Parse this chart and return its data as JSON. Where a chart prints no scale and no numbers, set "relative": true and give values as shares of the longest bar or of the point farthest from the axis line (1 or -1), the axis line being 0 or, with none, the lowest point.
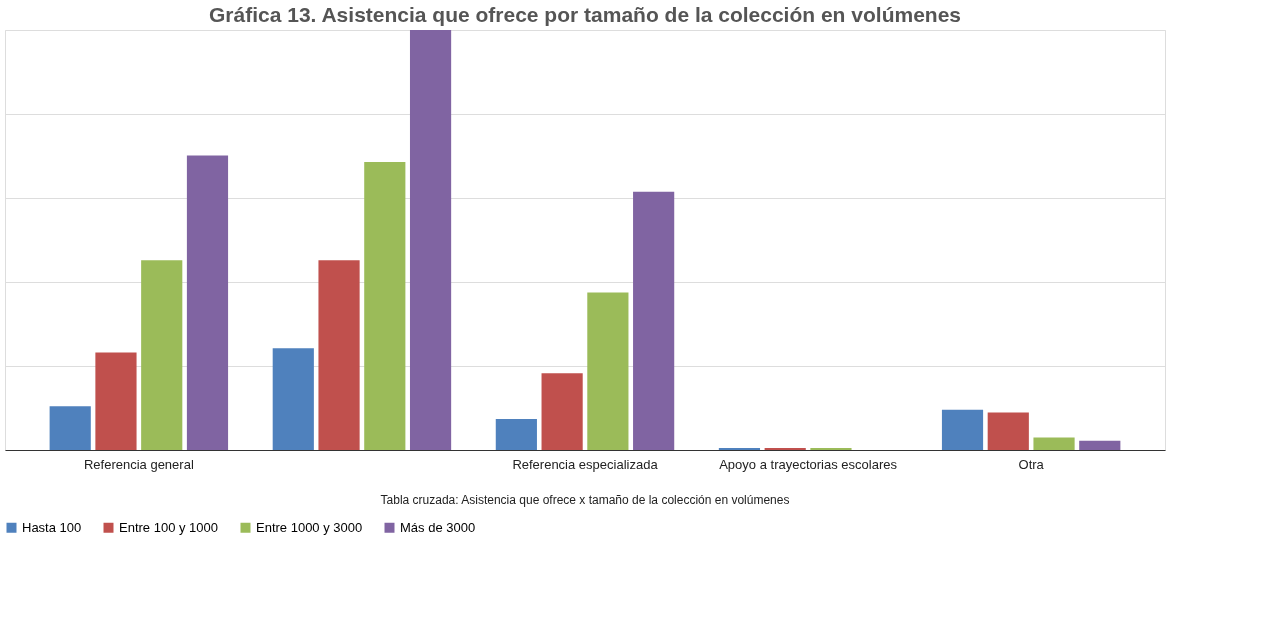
{
  "chart_data": {
    "type": "bar",
    "title": "Gráfica 13. Asistencia que ofrece por tamaño de la colección en volúmenes",
    "relative": true,
    "grid": "y",
    "legend": "bottom",
    "categories": [
      "Referencia general",
      null,
      "Referencia especializada",
      "Apoyo a trayectorias escolares",
      "Otra"
    ],
    "series": [
      {
        "name": "Hasta 100",
        "color": "#4f81bd",
        "values": [
          0.104,
          0.242,
          0.074,
          0.005,
          0.096
        ]
      },
      {
        "name": "Entre 100 y 1000",
        "color": "#c0504d",
        "values": [
          0.232,
          0.452,
          0.183,
          0.005,
          0.089
        ]
      },
      {
        "name": "Entre 1000 y 3000",
        "color": "#9bbb59",
        "values": [
          0.452,
          0.686,
          0.375,
          0.005,
          0.03
        ]
      },
      {
        "name": "Más de 3000",
        "color": "#8064a2",
        "values": [
          0.701,
          1.0,
          0.615,
          0,
          0.022
        ]
      }
    ],
    "annotations": [
      "Tabla cruzada: Asistencia que ofrece x tamaño de la colección en volúmenes"
    ]
  }
}
